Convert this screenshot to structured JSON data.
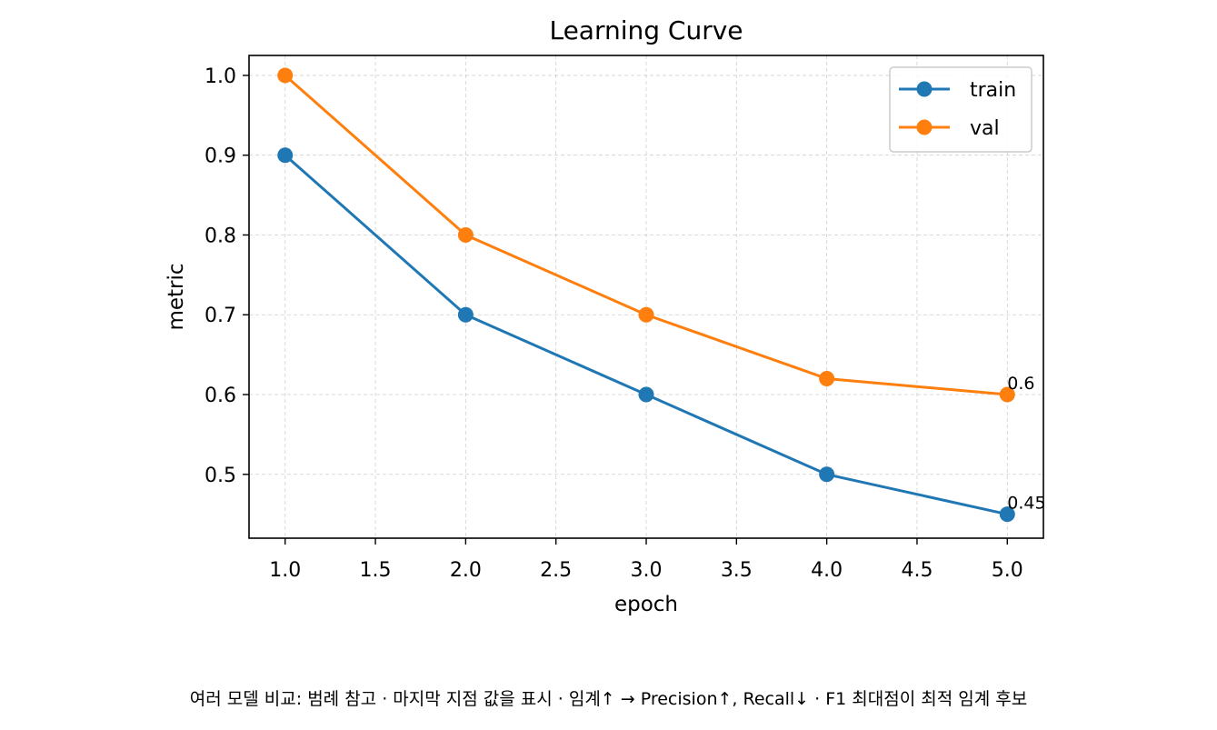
{
  "chart_data": {
    "type": "line",
    "title": "Learning Curve",
    "xlabel": "epoch",
    "ylabel": "metric",
    "xlim": [
      0.8,
      5.2
    ],
    "ylim": [
      0.42,
      1.025
    ],
    "x_ticks": [
      1.0,
      1.5,
      2.0,
      2.5,
      3.0,
      3.5,
      4.0,
      4.5,
      5.0
    ],
    "x_tick_labels": [
      "1.0",
      "1.5",
      "2.0",
      "2.5",
      "3.0",
      "3.5",
      "4.0",
      "4.5",
      "5.0"
    ],
    "y_ticks": [
      0.5,
      0.6,
      0.7,
      0.8,
      0.9,
      1.0
    ],
    "y_tick_labels": [
      "0.5",
      "0.6",
      "0.7",
      "0.8",
      "0.9",
      "1.0"
    ],
    "grid": true,
    "legend_position": "top-right",
    "x": [
      1,
      2,
      3,
      4,
      5
    ],
    "series": [
      {
        "name": "train",
        "color": "#1f77b4",
        "values": [
          0.9,
          0.7,
          0.6,
          0.5,
          0.45
        ]
      },
      {
        "name": "val",
        "color": "#ff7f0e",
        "values": [
          1.0,
          0.8,
          0.7,
          0.62,
          0.6
        ]
      }
    ],
    "annotations": [
      {
        "text": "0.6",
        "x": 5,
        "y": 0.6,
        "series": "val"
      },
      {
        "text": "0.45",
        "x": 5,
        "y": 0.45,
        "series": "train"
      }
    ]
  },
  "caption": "여러 모델 비교: 범례 참고 · 마지막 지점 값을 표시 · 임계↑ → Precision↑, Recall↓ · F1 최대점이 최적 임계 후보"
}
